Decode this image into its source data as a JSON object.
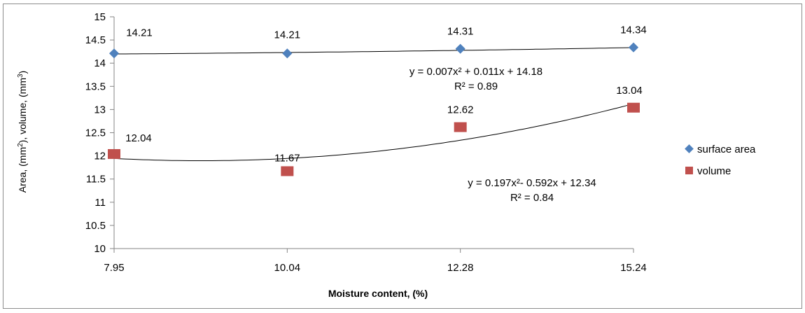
{
  "chart_data": {
    "type": "scatter",
    "x_categories": [
      "7.95",
      "10.04",
      "12.28",
      "15.24"
    ],
    "xlabel": "Moisture content, (%)",
    "ylabel_parts": [
      "Area, (mm",
      "2",
      "), volume, (mm",
      "3",
      ")"
    ],
    "ylim": [
      10,
      15
    ],
    "yticks": [
      10,
      10.5,
      11,
      11.5,
      12,
      12.5,
      13,
      13.5,
      14,
      14.5,
      15
    ],
    "ytick_labels": [
      "10",
      "10.5",
      "11",
      "11.5",
      "12",
      "12.5",
      "13",
      "13.5",
      "14",
      "14.5",
      "15"
    ],
    "grid": false,
    "legend_placement": "right",
    "series": [
      {
        "name": "surface area",
        "marker": "diamond",
        "color": "#4f81bd",
        "values": [
          14.21,
          14.21,
          14.31,
          14.34
        ],
        "data_labels": [
          "14.21",
          "14.21",
          "14.31",
          "14.34"
        ],
        "trendline": {
          "type": "polynomial",
          "coefficients": [
            0.007,
            0.011,
            14.18
          ],
          "equation": "y = 0.007x² + 0.011x + 14.18",
          "r2": "R² = 0.89"
        }
      },
      {
        "name": "volume",
        "marker": "square",
        "color": "#c0504d",
        "values": [
          12.04,
          11.67,
          12.62,
          13.04
        ],
        "data_labels": [
          "12.04",
          "11.67",
          "12.62",
          "13.04"
        ],
        "trendline": {
          "type": "polynomial",
          "coefficients": [
            0.197,
            -0.592,
            12.34
          ],
          "equation": "y = 0.197x²- 0.592x + 12.34",
          "r2": "R² = 0.84"
        }
      }
    ]
  }
}
